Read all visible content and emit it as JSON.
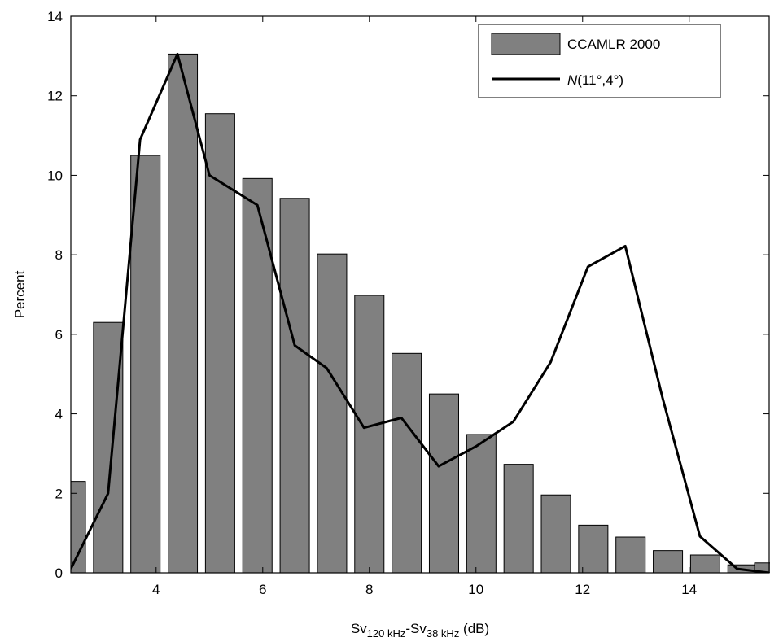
{
  "chart_data": {
    "type": "bar",
    "xlim": [
      2.4,
      15.5
    ],
    "ylim": [
      0,
      14
    ],
    "xticks": [
      4,
      6,
      8,
      10,
      12,
      14
    ],
    "yticks": [
      0,
      2,
      4,
      6,
      8,
      10,
      12,
      14
    ],
    "bar_width": 0.55,
    "ylabel": "Percent",
    "xlabel": {
      "prefix": "Sv",
      "sub1": "120 kHz",
      "mid": "-Sv",
      "sub2": "38 kHz",
      "suffix": " (dB)"
    },
    "grid": false,
    "legend_position": "top-right",
    "series": [
      {
        "name": "CCAMLR 2000",
        "kind": "bar",
        "color": "#808080",
        "x": [
          2.4,
          3.1,
          3.8,
          4.5,
          5.2,
          5.9,
          6.6,
          7.3,
          8.0,
          8.7,
          9.4,
          10.1,
          10.8,
          11.5,
          12.2,
          12.9,
          13.6,
          14.3,
          15.0,
          15.5
        ],
        "values": [
          2.3,
          6.3,
          10.5,
          13.05,
          11.55,
          9.92,
          9.42,
          8.02,
          6.98,
          5.52,
          4.5,
          3.48,
          2.73,
          1.96,
          1.2,
          0.9,
          0.56,
          0.45,
          0.2,
          0.25
        ]
      },
      {
        "name_prefix": "N",
        "name_suffix": "(11°,4°)",
        "kind": "line",
        "color": "#000000",
        "x": [
          2.4,
          3.1,
          3.7,
          4.4,
          5.0,
          5.9,
          6.6,
          7.2,
          7.9,
          8.6,
          9.3,
          10.0,
          10.7,
          11.4,
          12.1,
          12.8,
          13.5,
          14.2,
          14.9,
          15.5
        ],
        "values": [
          0.1,
          2.0,
          10.9,
          13.05,
          10.0,
          9.25,
          5.72,
          5.15,
          3.65,
          3.9,
          2.68,
          3.18,
          3.8,
          5.3,
          7.7,
          8.22,
          4.4,
          0.92,
          0.1,
          0.0
        ]
      }
    ]
  }
}
